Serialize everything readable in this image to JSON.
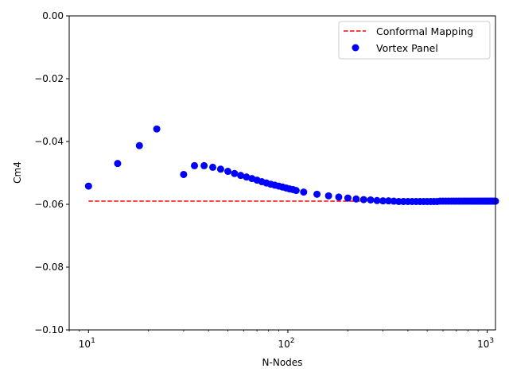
{
  "chart_data": {
    "type": "scatter",
    "xlabel": "N-Nodes",
    "ylabel": "Cm4",
    "xscale": "log",
    "xlim": [
      8,
      1100
    ],
    "ylim": [
      -0.1,
      0.0
    ],
    "x_ticks": [
      {
        "value": 10,
        "base": "10",
        "exp": "1"
      },
      {
        "value": 100,
        "base": "10",
        "exp": "2"
      },
      {
        "value": 1000,
        "base": "10",
        "exp": "3"
      }
    ],
    "y_ticks": [
      {
        "value": 0.0,
        "label": "0.00"
      },
      {
        "value": -0.02,
        "label": "−0.02"
      },
      {
        "value": -0.04,
        "label": "−0.04"
      },
      {
        "value": -0.06,
        "label": "−0.06"
      },
      {
        "value": -0.08,
        "label": "−0.08"
      },
      {
        "value": -0.1,
        "label": "−0.10"
      }
    ],
    "legend_position": "top-right",
    "series": [
      {
        "name": "Conformal Mapping",
        "kind": "line",
        "style": "dashed",
        "color": "#ff0000",
        "x": [
          10,
          1100
        ],
        "y": [
          -0.059,
          -0.059
        ]
      },
      {
        "name": "Vortex Panel",
        "kind": "scatter",
        "color": "#0000ff",
        "x": [
          10,
          14,
          18,
          22,
          30,
          34,
          38,
          42,
          46,
          50,
          54,
          58,
          62,
          66,
          70,
          74,
          78,
          82,
          86,
          90,
          94,
          98,
          102,
          106,
          110,
          120,
          140,
          160,
          180,
          200,
          220,
          240,
          260,
          280,
          300,
          320,
          340,
          360,
          380,
          400,
          420,
          440,
          460,
          480,
          500,
          520,
          540,
          560,
          580,
          600,
          620,
          640,
          660,
          680,
          700,
          720,
          740,
          760,
          780,
          800,
          820,
          840,
          860,
          880,
          900,
          920,
          940,
          960,
          980,
          1000,
          1020,
          1040,
          1060,
          1080,
          1100
        ],
        "y": [
          -0.0542,
          -0.047,
          -0.0413,
          -0.036,
          -0.0505,
          -0.0477,
          -0.0477,
          -0.0482,
          -0.0488,
          -0.0495,
          -0.0502,
          -0.0508,
          -0.0513,
          -0.0518,
          -0.0523,
          -0.0528,
          -0.0532,
          -0.0536,
          -0.0539,
          -0.0542,
          -0.0545,
          -0.0548,
          -0.0551,
          -0.0553,
          -0.0556,
          -0.0561,
          -0.0568,
          -0.0573,
          -0.0577,
          -0.058,
          -0.0583,
          -0.0585,
          -0.0586,
          -0.0588,
          -0.0589,
          -0.0589,
          -0.059,
          -0.0591,
          -0.0591,
          -0.0591,
          -0.0591,
          -0.0591,
          -0.0591,
          -0.0591,
          -0.0591,
          -0.0591,
          -0.0591,
          -0.0591,
          -0.059,
          -0.059,
          -0.059,
          -0.059,
          -0.059,
          -0.059,
          -0.059,
          -0.059,
          -0.059,
          -0.059,
          -0.059,
          -0.059,
          -0.059,
          -0.059,
          -0.059,
          -0.059,
          -0.059,
          -0.059,
          -0.059,
          -0.059,
          -0.059,
          -0.059,
          -0.059,
          -0.059,
          -0.059,
          -0.059,
          -0.059
        ]
      }
    ]
  }
}
